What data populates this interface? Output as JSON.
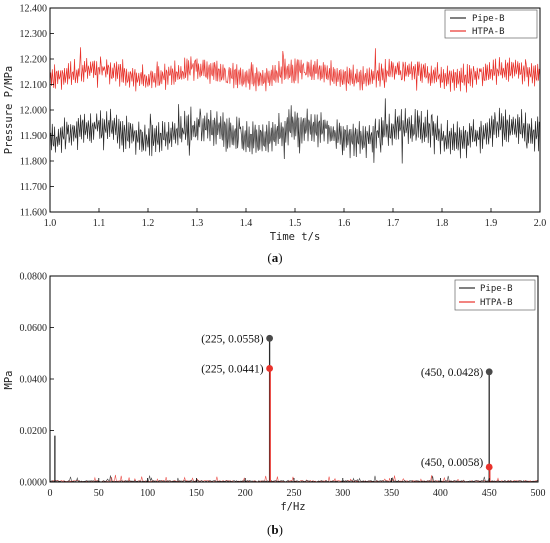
{
  "colors": {
    "series_black": "#2b2b2b",
    "series_red": "#e8322b",
    "stem_dark": "#4a4a4a"
  },
  "chart_data": [
    {
      "type": "line",
      "panel_label": "(a)",
      "title": "",
      "xlabel": "Time t/s",
      "ylabel": "Pressure P/MPa",
      "xlim": [
        1.0,
        2.0
      ],
      "ylim": [
        11.6,
        12.4
      ],
      "x_ticks": [
        "1.0",
        "1.1",
        "1.2",
        "1.3",
        "1.4",
        "1.5",
        "1.6",
        "1.7",
        "1.8",
        "1.9",
        "2.0"
      ],
      "y_ticks": [
        "11.600",
        "11.700",
        "11.800",
        "11.900",
        "12.000",
        "12.100",
        "12.200",
        "12.300",
        "12.400"
      ],
      "grid": false,
      "legend_position": "top-right",
      "series": [
        {
          "name": "Pipe-B",
          "color": "#2b2b2b",
          "mean": 11.91,
          "amplitude": 0.07,
          "approx_min": 11.71,
          "approx_max": 12.05
        },
        {
          "name": "HTPA-B",
          "color": "#e8322b",
          "mean": 12.14,
          "amplitude": 0.05,
          "approx_min": 12.05,
          "approx_max": 12.28
        }
      ]
    },
    {
      "type": "line",
      "panel_label": "(b)",
      "title": "",
      "xlabel": "f/Hz",
      "ylabel": "MPa",
      "xlim": [
        0,
        500
      ],
      "ylim": [
        0,
        0.08
      ],
      "x_ticks": [
        "0",
        "50",
        "100",
        "150",
        "200",
        "250",
        "300",
        "350",
        "400",
        "450",
        "500"
      ],
      "y_ticks": [
        "0.0000",
        "0.0200",
        "0.0400",
        "0.0600",
        "0.0800"
      ],
      "grid": false,
      "legend_position": "top-right",
      "series": [
        {
          "name": "Pipe-B",
          "color": "#2b2b2b",
          "peaks": [
            {
              "x": 5,
              "y": 0.018
            },
            {
              "x": 225,
              "y": 0.0558
            },
            {
              "x": 450,
              "y": 0.0428
            }
          ]
        },
        {
          "name": "HTPA-B",
          "color": "#e8322b",
          "peaks": [
            {
              "x": 225,
              "y": 0.0441
            },
            {
              "x": 450,
              "y": 0.0058
            }
          ]
        }
      ],
      "annotations": [
        {
          "text": "(225, 0.0558)",
          "x": 225,
          "y": 0.0558,
          "color": "#4a4a4a"
        },
        {
          "text": "(225, 0.0441)",
          "x": 225,
          "y": 0.0441,
          "color": "#e8322b"
        },
        {
          "text": "(450, 0.0428)",
          "x": 450,
          "y": 0.0428,
          "color": "#4a4a4a"
        },
        {
          "text": "(450, 0.0058)",
          "x": 450,
          "y": 0.0058,
          "color": "#e8322b"
        }
      ]
    }
  ]
}
